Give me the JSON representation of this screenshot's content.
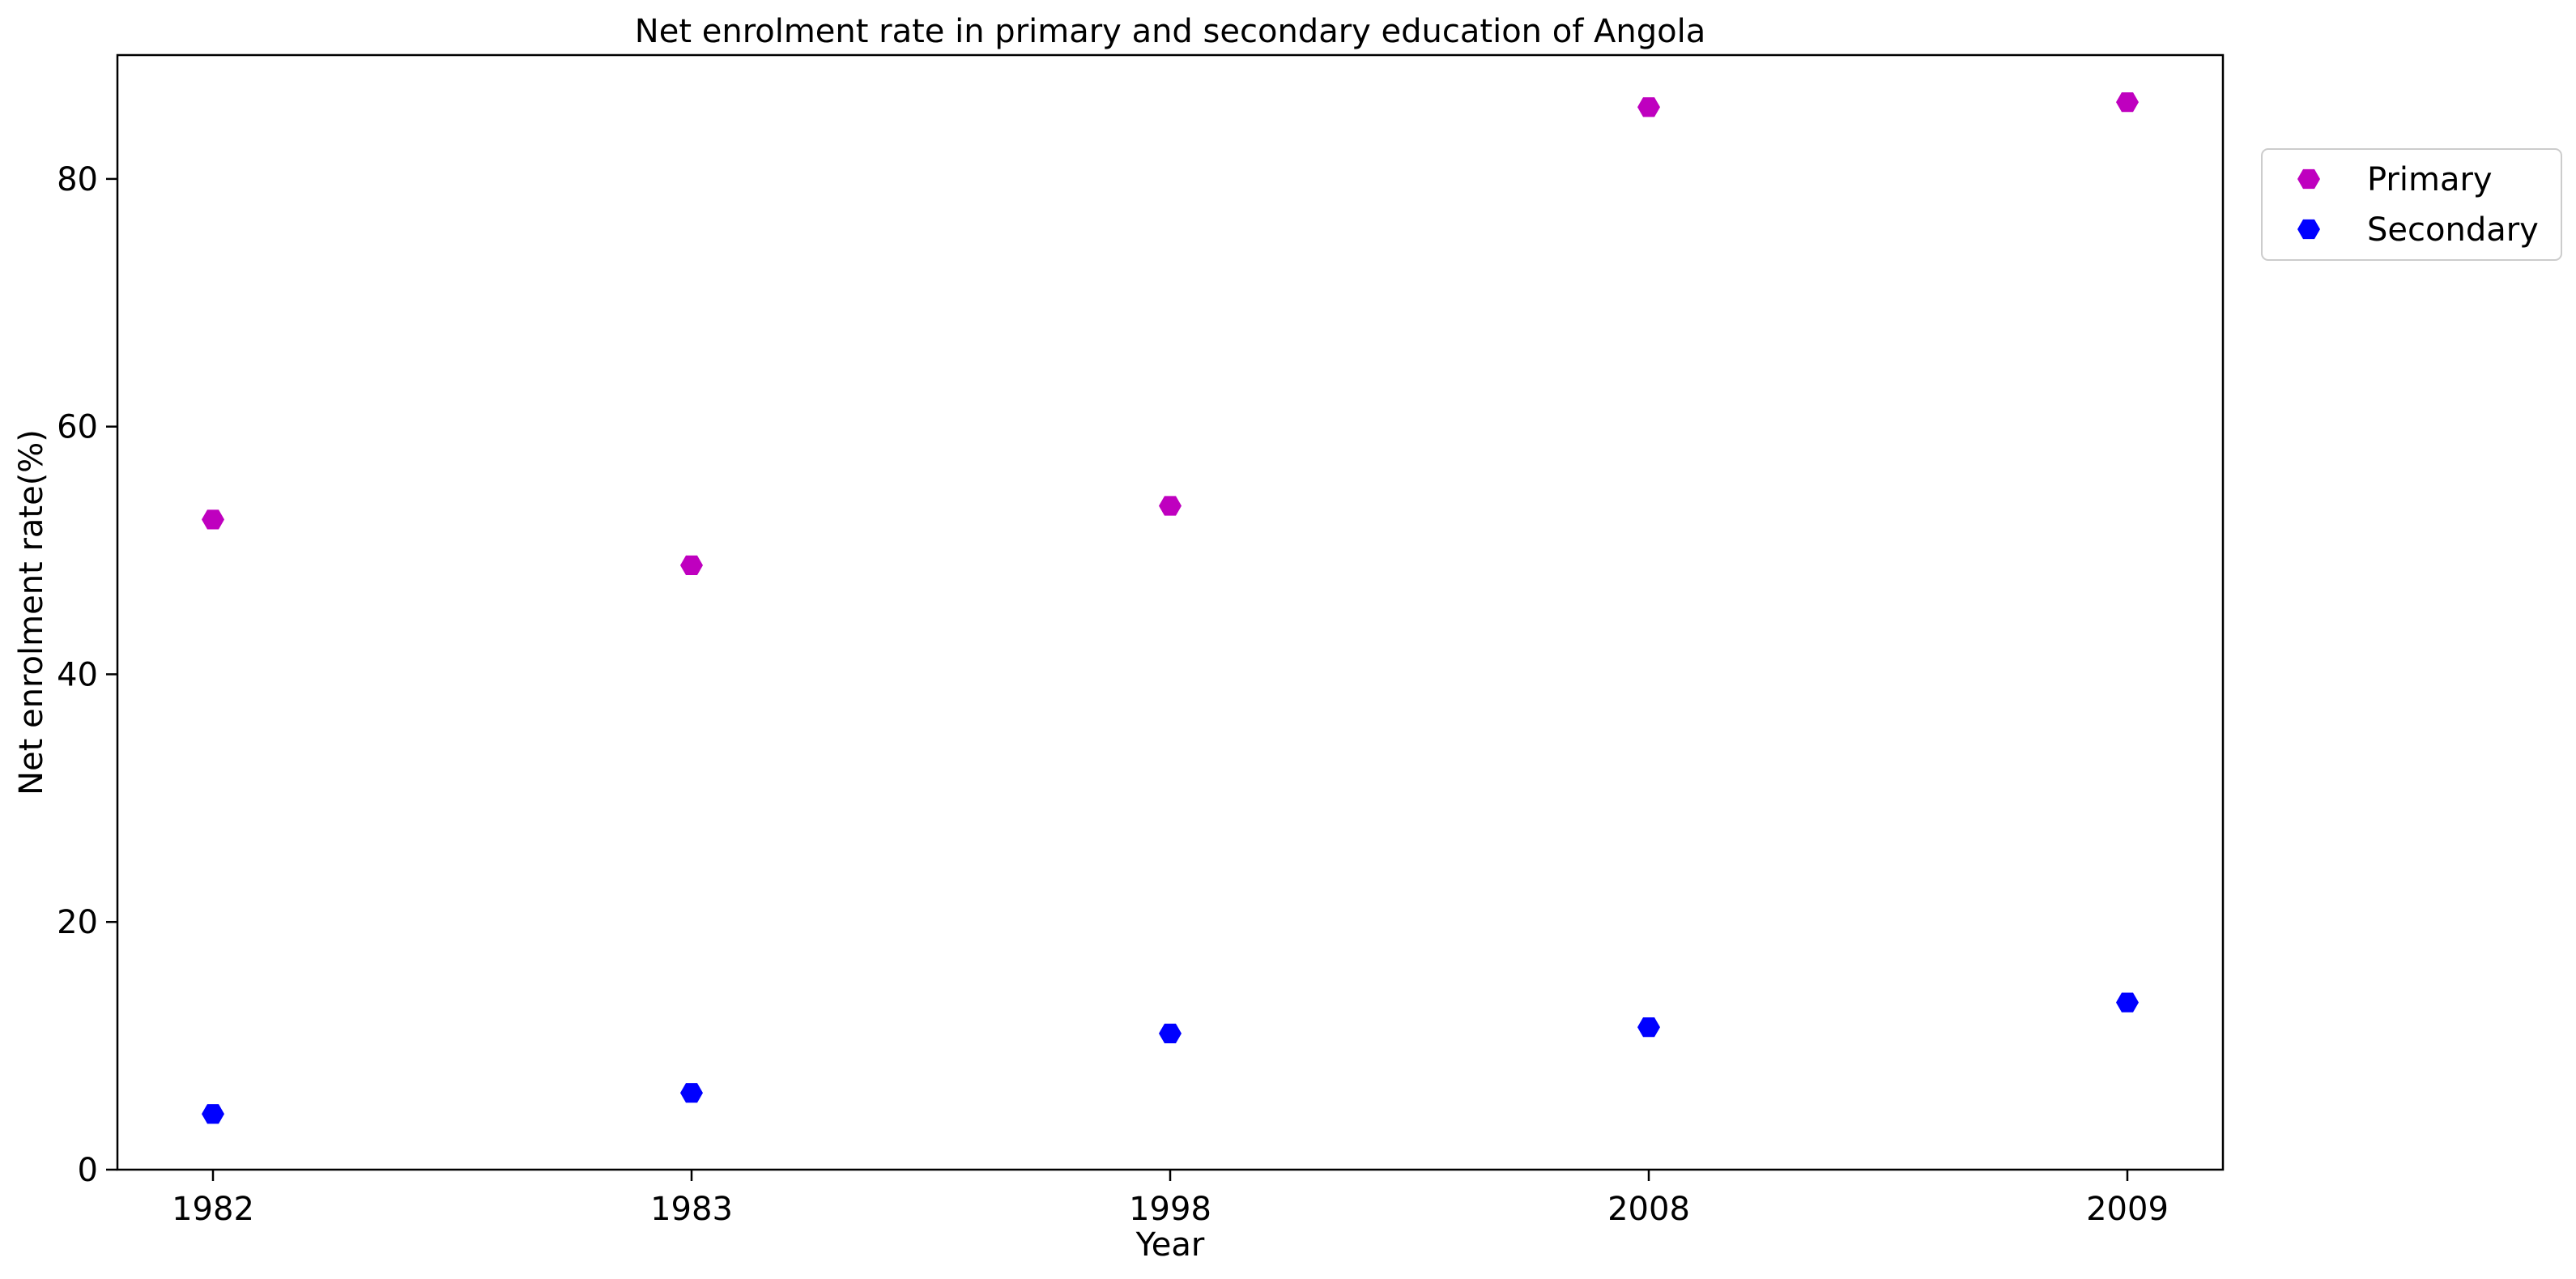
{
  "chart_data": {
    "type": "scatter",
    "title": "Net enrolment rate in primary and secondary education of Angola",
    "xlabel": "Year",
    "ylabel": "Net enrolment rate(%)",
    "categories": [
      "1982",
      "1983",
      "1998",
      "2008",
      "2009"
    ],
    "ylim": [
      0,
      90
    ],
    "yticks": [
      "0",
      "20",
      "40",
      "60",
      "80"
    ],
    "grid": false,
    "legend_position": "outside-top-right",
    "marker": "hexagon",
    "series": [
      {
        "name": "Primary",
        "color": "#bf00bf",
        "values": [
          52.5,
          48.8,
          53.6,
          85.8,
          86.2
        ]
      },
      {
        "name": "Secondary",
        "color": "#0000ff",
        "values": [
          4.5,
          6.2,
          11.0,
          11.5,
          13.5
        ]
      }
    ]
  }
}
